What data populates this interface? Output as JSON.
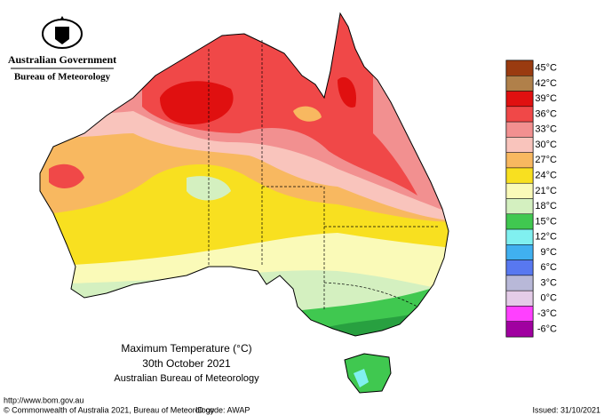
{
  "header": {
    "government": "Australian Government",
    "agency": "Bureau of Meteorology"
  },
  "legend": [
    {
      "label": "45°C",
      "color": "#9a3b10"
    },
    {
      "label": "42°C",
      "color": "#b0804a"
    },
    {
      "label": "39°C",
      "color": "#e01010"
    },
    {
      "label": "36°C",
      "color": "#f04848"
    },
    {
      "label": "33°C",
      "color": "#f29090"
    },
    {
      "label": "30°C",
      "color": "#f9c4bc"
    },
    {
      "label": "27°C",
      "color": "#f8b860"
    },
    {
      "label": "24°C",
      "color": "#f8e020"
    },
    {
      "label": "21°C",
      "color": "#fafab8"
    },
    {
      "label": "18°C",
      "color": "#d4f0c0"
    },
    {
      "label": "15°C",
      "color": "#40c850"
    },
    {
      "label": "12°C",
      "color": "#80f0f0"
    },
    {
      "label": "9°C",
      "color": "#40b0f0"
    },
    {
      "label": "6°C",
      "color": "#5878f0"
    },
    {
      "label": "3°C",
      "color": "#b8b8d8"
    },
    {
      "label": "0°C",
      "color": "#e4cce8"
    },
    {
      "label": "-3°C",
      "color": "#ff40ff"
    },
    {
      "label": "-6°C",
      "color": "#a000a0"
    }
  ],
  "caption": {
    "title": "Maximum Temperature (°C)",
    "date": "30th October 2021",
    "source": "Australian Bureau of Meteorology"
  },
  "footer": {
    "url": "http://www.bom.gov.au",
    "copyright": "© Commonwealth of Australia 2021, Bureau of Meteorology",
    "id_code": "ID code: AWAP",
    "issued": "Issued: 31/10/2021"
  }
}
